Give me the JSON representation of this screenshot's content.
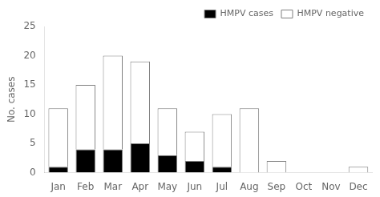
{
  "chart_data": {
    "type": "bar",
    "stacked": true,
    "categories": [
      "Jan",
      "Feb",
      "Mar",
      "Apr",
      "May",
      "Jun",
      "Jul",
      "Aug",
      "Sep",
      "Oct",
      "Nov",
      "Dec"
    ],
    "series": [
      {
        "name": "HMPV cases",
        "color": "#000000",
        "values": [
          1,
          4,
          4,
          5,
          3,
          2,
          1,
          0,
          0,
          0,
          0,
          0
        ]
      },
      {
        "name": "HMPV negative",
        "color": "#ffffff",
        "values": [
          10,
          11,
          16,
          14,
          8,
          5,
          9,
          11,
          2,
          0,
          0,
          1
        ]
      }
    ],
    "ylabel": "No. cases",
    "ylim": [
      0,
      25
    ],
    "yticks": [
      0,
      5,
      10,
      15,
      20,
      25
    ],
    "grid": false,
    "legend": "upper right"
  }
}
